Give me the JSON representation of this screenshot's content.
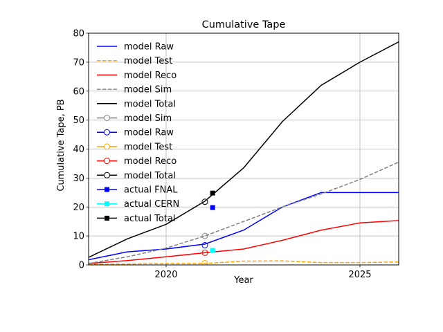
{
  "chart_data": {
    "type": "line",
    "title": "Cumulative Tape",
    "xlabel": "Year",
    "ylabel": "Cumulative Tape, PB",
    "xlim": [
      2018,
      2026
    ],
    "ylim": [
      0,
      80
    ],
    "xticks": [
      2020,
      2025
    ],
    "yticks": [
      0,
      10,
      20,
      30,
      40,
      50,
      60,
      70,
      80
    ],
    "grid": true,
    "legend_position": "top-left",
    "series": [
      {
        "name": "model Raw",
        "color": "#0000ff",
        "dash": "solid",
        "marker": "none",
        "x": [
          2018,
          2019,
          2020,
          2021,
          2022,
          2023,
          2024,
          2025,
          2026
        ],
        "y": [
          1.8,
          4.5,
          5.5,
          7.2,
          12,
          20,
          25,
          25,
          25
        ]
      },
      {
        "name": "model Test",
        "color": "#ffa500",
        "dash": "dashed",
        "marker": "none",
        "x": [
          2018,
          2019,
          2020,
          2021,
          2022,
          2023,
          2024,
          2025,
          2026
        ],
        "y": [
          0.2,
          0.3,
          0.5,
          0.5,
          1.3,
          1.4,
          0.8,
          0.8,
          1.0
        ]
      },
      {
        "name": "model Reco",
        "color": "#ff0000",
        "dash": "solid",
        "marker": "none",
        "x": [
          2018,
          2019,
          2020,
          2021,
          2022,
          2023,
          2024,
          2025,
          2026
        ],
        "y": [
          0.5,
          1.5,
          2.8,
          4.2,
          5.5,
          8.5,
          12,
          14.5,
          15.3
        ]
      },
      {
        "name": "model Sim",
        "color": "#808080",
        "dash": "dashed",
        "marker": "none",
        "x": [
          2018,
          2019,
          2020,
          2021,
          2022,
          2023,
          2024,
          2025,
          2026
        ],
        "y": [
          0.5,
          2.8,
          5.8,
          10,
          15,
          20,
          24.5,
          29.5,
          35.5
        ]
      },
      {
        "name": "model Total",
        "color": "#000000",
        "dash": "solid",
        "marker": "none",
        "x": [
          2018,
          2019,
          2020,
          2021,
          2022,
          2023,
          2024,
          2025,
          2026
        ],
        "y": [
          2.6,
          9,
          14,
          22,
          33.5,
          49.5,
          62,
          70,
          77
        ]
      },
      {
        "name": "model Sim",
        "color": "#808080",
        "dash": "none",
        "marker": "open-circle",
        "x": [
          2021
        ],
        "y": [
          10
        ]
      },
      {
        "name": "model Raw",
        "color": "#0000ff",
        "dash": "none",
        "marker": "open-circle",
        "x": [
          2021
        ],
        "y": [
          6.8
        ]
      },
      {
        "name": "model Test",
        "color": "#ffa500",
        "dash": "none",
        "marker": "open-circle",
        "x": [
          2021
        ],
        "y": [
          0.6
        ]
      },
      {
        "name": "model Reco",
        "color": "#ff0000",
        "dash": "none",
        "marker": "open-circle",
        "x": [
          2021
        ],
        "y": [
          4.2
        ]
      },
      {
        "name": "model Total",
        "color": "#000000",
        "dash": "none",
        "marker": "open-circle",
        "x": [
          2021
        ],
        "y": [
          21.8
        ]
      },
      {
        "name": "actual  FNAL",
        "color": "#0000ff",
        "dash": "none",
        "marker": "square",
        "x": [
          2021.2
        ],
        "y": [
          19.8
        ]
      },
      {
        "name": "actual  CERN",
        "color": "#00ffff",
        "dash": "none",
        "marker": "square",
        "x": [
          2021.2
        ],
        "y": [
          5
        ]
      },
      {
        "name": "actual  Total",
        "color": "#000000",
        "dash": "none",
        "marker": "square",
        "x": [
          2021.2
        ],
        "y": [
          24.8
        ]
      }
    ]
  }
}
